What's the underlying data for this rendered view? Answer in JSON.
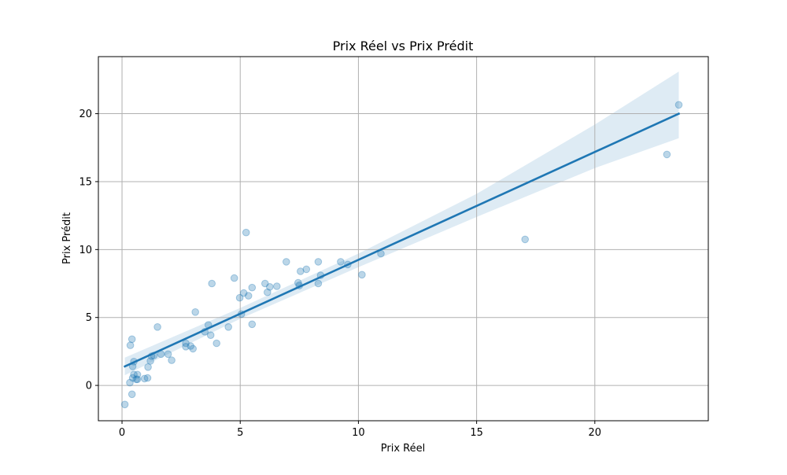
{
  "chart_data": {
    "type": "scatter",
    "title": "Prix Réel vs Prix Prédit",
    "xlabel": "Prix Réel",
    "ylabel": "Prix Prédit",
    "xlim": [
      -1.0,
      24.8
    ],
    "ylim": [
      -2.6,
      24.2
    ],
    "xticks": [
      0,
      5,
      10,
      15,
      20
    ],
    "yticks": [
      0,
      5,
      10,
      15,
      20
    ],
    "grid": true,
    "legend": "none",
    "colors": {
      "points": "#1f77b4",
      "regression_line": "#1f77b4",
      "confidence_band": "#1f77b4",
      "grid": "#b0b0b0"
    },
    "points": [
      [
        0.12,
        -1.4
      ],
      [
        0.42,
        -0.65
      ],
      [
        0.33,
        0.2
      ],
      [
        0.45,
        0.55
      ],
      [
        0.6,
        0.45
      ],
      [
        0.65,
        0.45
      ],
      [
        0.95,
        0.5
      ],
      [
        1.08,
        0.55
      ],
      [
        0.5,
        0.8
      ],
      [
        0.65,
        0.8
      ],
      [
        1.1,
        1.35
      ],
      [
        0.45,
        1.4
      ],
      [
        0.5,
        1.75
      ],
      [
        1.2,
        1.8
      ],
      [
        1.25,
        2.15
      ],
      [
        1.35,
        2.2
      ],
      [
        1.65,
        2.3
      ],
      [
        1.95,
        2.3
      ],
      [
        2.1,
        1.85
      ],
      [
        0.35,
        2.95
      ],
      [
        0.42,
        3.4
      ],
      [
        1.5,
        4.3
      ],
      [
        2.7,
        2.85
      ],
      [
        2.7,
        3.1
      ],
      [
        2.9,
        2.9
      ],
      [
        3.0,
        2.7
      ],
      [
        3.1,
        5.4
      ],
      [
        3.5,
        3.95
      ],
      [
        3.65,
        4.45
      ],
      [
        3.75,
        3.7
      ],
      [
        3.8,
        7.5
      ],
      [
        4.0,
        3.1
      ],
      [
        4.5,
        4.3
      ],
      [
        4.75,
        7.9
      ],
      [
        4.98,
        6.45
      ],
      [
        5.05,
        5.25
      ],
      [
        5.15,
        6.8
      ],
      [
        5.25,
        11.25
      ],
      [
        5.35,
        6.6
      ],
      [
        5.5,
        4.5
      ],
      [
        5.5,
        7.2
      ],
      [
        6.05,
        7.5
      ],
      [
        6.15,
        6.85
      ],
      [
        6.25,
        7.25
      ],
      [
        6.55,
        7.3
      ],
      [
        6.95,
        9.1
      ],
      [
        7.45,
        7.55
      ],
      [
        7.5,
        7.35
      ],
      [
        7.55,
        8.4
      ],
      [
        7.8,
        8.55
      ],
      [
        8.3,
        9.1
      ],
      [
        8.3,
        7.5
      ],
      [
        8.4,
        8.1
      ],
      [
        9.25,
        9.1
      ],
      [
        9.55,
        8.9
      ],
      [
        10.15,
        8.15
      ],
      [
        10.95,
        9.7
      ],
      [
        17.05,
        10.75
      ],
      [
        23.05,
        17.0
      ],
      [
        23.55,
        20.65
      ]
    ],
    "regression_line": {
      "x": [
        0.12,
        23.55
      ],
      "y": [
        1.4,
        20.0
      ]
    },
    "confidence_band": {
      "x": [
        0.12,
        5.0,
        10.0,
        15.0,
        20.0,
        23.55
      ],
      "lower": [
        0.75,
        4.9,
        8.7,
        12.4,
        16.0,
        18.2
      ],
      "upper": [
        2.05,
        5.7,
        9.7,
        14.1,
        19.2,
        23.1
      ]
    }
  }
}
